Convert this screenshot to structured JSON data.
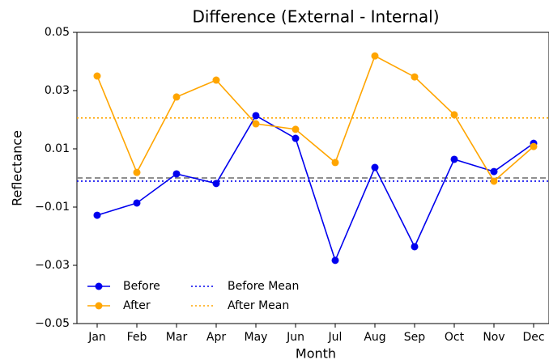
{
  "chart_data": {
    "type": "line",
    "title": "Difference  (External - Internal)",
    "x_label": "Month",
    "y_label": "Reflectance",
    "categories": [
      "Jan",
      "Feb",
      "Mar",
      "Apr",
      "May",
      "Jun",
      "Jul",
      "Aug",
      "Sep",
      "Oct",
      "Nov",
      "Dec"
    ],
    "series": [
      {
        "name": "Before",
        "color": "#0000ee",
        "values": [
          -0.0128,
          -0.0086,
          0.0014,
          -0.0019,
          0.0214,
          0.0136,
          -0.0283,
          0.0036,
          -0.0236,
          0.0064,
          0.0022,
          0.0119
        ]
      },
      {
        "name": "After",
        "color": "#ffa500",
        "values": [
          0.035,
          0.0019,
          0.0278,
          0.0336,
          0.0186,
          0.0167,
          0.0053,
          0.0419,
          0.0347,
          0.0217,
          -0.0011,
          0.0108
        ]
      }
    ],
    "reference_lines": [
      {
        "name": "Before Mean",
        "value": -0.0011,
        "color": "#0000ee",
        "style": "dotted"
      },
      {
        "name": "After Mean",
        "value": 0.0206,
        "color": "#ffa500",
        "style": "dotted"
      },
      {
        "value": 0,
        "color": "#808080",
        "style": "dashed"
      }
    ],
    "ylim": [
      -0.05,
      0.05
    ],
    "yticks": [
      {
        "value": -0.05,
        "label": "−0.05"
      },
      {
        "value": -0.03,
        "label": "−0.03"
      },
      {
        "value": -0.01,
        "label": "−0.01"
      },
      0.01,
      0.03,
      0.05
    ],
    "legend": "lower left"
  }
}
